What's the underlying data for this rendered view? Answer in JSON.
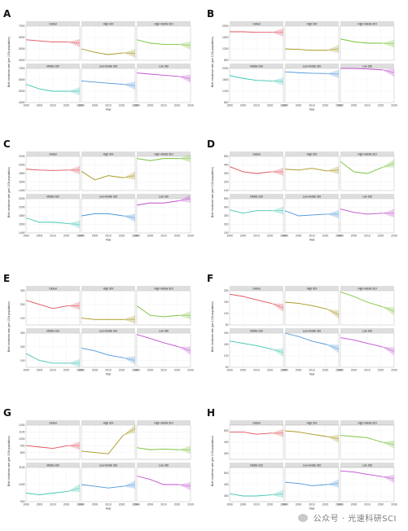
{
  "colors": {
    "Global": "#e0505a",
    "High SDI": "#a6961c",
    "High-middle SDI": "#77c23a",
    "Middle SDI": "#3fc6b4",
    "Low-middle SDI": "#4d98dc",
    "Low SDI": "#c04fd0"
  },
  "watermark": {
    "text": "公众号 · 光速科研SCI",
    "icon": "wechat-icon"
  },
  "chart_data": [
    {
      "label": "A",
      "type": "line",
      "ylabel": "Birth incidence rate (per 100k population)",
      "xlabel": "Year",
      "xlim": [
        1990,
        2030
      ],
      "x_ticks": [
        1990,
        2000,
        2010,
        2020,
        2030
      ],
      "rows": [
        {
          "ylim": [
            4000,
            7000
          ],
          "y_ticks": [
            4000,
            5000,
            6000,
            7000
          ]
        },
        {
          "ylim": [
            4000,
            7000
          ],
          "y_ticks": [
            4000,
            5000,
            6000,
            7000
          ]
        }
      ],
      "panels": [
        {
          "name": "Global",
          "x": [
            1990,
            2000,
            2010,
            2021
          ],
          "y": [
            5800,
            5700,
            5600,
            5600
          ],
          "pred_end": 5500
        },
        {
          "name": "High SDI",
          "x": [
            1990,
            2000,
            2010,
            2021
          ],
          "y": [
            5000,
            4700,
            4500,
            4650
          ],
          "pred_end": 4600
        },
        {
          "name": "High-middle SDI",
          "x": [
            1990,
            2000,
            2010,
            2021
          ],
          "y": [
            5800,
            5500,
            5400,
            5400
          ],
          "pred_end": 5300
        },
        {
          "name": "Middle SDI",
          "x": [
            1990,
            2000,
            2010,
            2021
          ],
          "y": [
            5600,
            5200,
            5000,
            5000
          ],
          "pred_end": 5000
        },
        {
          "name": "Low-middle SDI",
          "x": [
            1990,
            2000,
            2010,
            2021
          ],
          "y": [
            5900,
            5800,
            5700,
            5600
          ],
          "pred_end": 5500
        },
        {
          "name": "Low SDI",
          "x": [
            1990,
            2000,
            2010,
            2021
          ],
          "y": [
            6600,
            6500,
            6400,
            6300
          ],
          "pred_end": 6100
        }
      ]
    },
    {
      "label": "B",
      "type": "line",
      "ylabel": "Birth incidence rate (per 100k population)",
      "xlabel": "Year",
      "xlim": [
        1990,
        2030
      ],
      "x_ticks": [
        1990,
        2000,
        2010,
        2020,
        2030
      ],
      "rows": [
        {
          "ylim": [
            800,
            2000
          ],
          "y_ticks": [
            800,
            1200,
            1600,
            2000
          ]
        },
        {
          "ylim": [
            800,
            2000
          ],
          "y_ticks": [
            800,
            1200,
            1600,
            2000
          ]
        }
      ],
      "panels": [
        {
          "name": "Global",
          "x": [
            1990,
            2000,
            2010,
            2021
          ],
          "y": [
            1800,
            1800,
            1780,
            1780
          ],
          "pred_end": 1780
        },
        {
          "name": "High SDI",
          "x": [
            1990,
            2000,
            2010,
            2021
          ],
          "y": [
            1200,
            1180,
            1150,
            1150
          ],
          "pred_end": 1200
        },
        {
          "name": "High-middle SDI",
          "x": [
            1990,
            2000,
            2010,
            2021
          ],
          "y": [
            1550,
            1450,
            1400,
            1400
          ],
          "pred_end": 1380
        },
        {
          "name": "Middle SDI",
          "x": [
            1990,
            2000,
            2010,
            2021
          ],
          "y": [
            1750,
            1650,
            1580,
            1560
          ],
          "pred_end": 1540
        },
        {
          "name": "Low-middle SDI",
          "x": [
            1990,
            2000,
            2010,
            2021
          ],
          "y": [
            1880,
            1850,
            1830,
            1820
          ],
          "pred_end": 1800
        },
        {
          "name": "Low SDI",
          "x": [
            1990,
            2000,
            2010,
            2021
          ],
          "y": [
            2000,
            2000,
            1980,
            1950
          ],
          "pred_end": 1850
        }
      ]
    },
    {
      "label": "C",
      "type": "line",
      "ylabel": "Birth incidence rate (per 100k population)",
      "xlabel": "Year",
      "xlim": [
        1990,
        2030
      ],
      "x_ticks": [
        1990,
        2000,
        2010,
        2020,
        2030
      ],
      "rows": [
        {
          "ylim": [
            1400,
            2200
          ],
          "y_ticks": [
            1400,
            1600,
            1800,
            2000,
            2200
          ]
        },
        {
          "ylim": [
            1400,
            2200
          ],
          "y_ticks": [
            1400,
            1600,
            1800,
            2000,
            2200
          ]
        }
      ],
      "panels": [
        {
          "name": "Global",
          "x": [
            1990,
            2000,
            2010,
            2021
          ],
          "y": [
            1900,
            1880,
            1870,
            1880
          ],
          "pred_end": 1880
        },
        {
          "name": "High SDI",
          "x": [
            1990,
            2000,
            2010,
            2021
          ],
          "y": [
            1850,
            1650,
            1750,
            1700
          ],
          "pred_end": 1750
        },
        {
          "name": "High-middle SDI",
          "x": [
            1990,
            2000,
            2010,
            2021
          ],
          "y": [
            2150,
            2100,
            2150,
            2150
          ],
          "pred_end": 2150
        },
        {
          "name": "Middle SDI",
          "x": [
            1990,
            2000,
            2010,
            2021
          ],
          "y": [
            1750,
            1650,
            1650,
            1620
          ],
          "pred_end": 1600
        },
        {
          "name": "Low-middle SDI",
          "x": [
            1990,
            2000,
            2010,
            2021
          ],
          "y": [
            1800,
            1850,
            1850,
            1800
          ],
          "pred_end": 1750
        },
        {
          "name": "Low SDI",
          "x": [
            1990,
            2000,
            2010,
            2021
          ],
          "y": [
            2050,
            2100,
            2100,
            2150
          ],
          "pred_end": 2200
        }
      ]
    },
    {
      "label": "D",
      "type": "line",
      "ylabel": "Birth incidence rate (per 100k population)",
      "xlabel": "Year",
      "xlim": [
        1990,
        2030
      ],
      "x_ticks": [
        1990,
        2000,
        2010,
        2020,
        2030
      ],
      "rows": [
        {
          "ylim": [
            100,
            500
          ],
          "y_ticks": [
            100,
            200,
            300,
            400,
            500
          ]
        },
        {
          "ylim": [
            100,
            500
          ],
          "y_ticks": [
            100,
            200,
            300,
            400,
            500
          ]
        }
      ],
      "panels": [
        {
          "name": "Global",
          "x": [
            1990,
            2000,
            2010,
            2021
          ],
          "y": [
            380,
            320,
            300,
            320
          ],
          "pred_end": 320
        },
        {
          "name": "High SDI",
          "x": [
            1990,
            2000,
            2010,
            2021
          ],
          "y": [
            350,
            340,
            360,
            330
          ],
          "pred_end": 340
        },
        {
          "name": "High-middle SDI",
          "x": [
            1990,
            2000,
            2010,
            2021
          ],
          "y": [
            440,
            320,
            300,
            370
          ],
          "pred_end": 420
        },
        {
          "name": "Middle SDI",
          "x": [
            1990,
            2000,
            2010,
            2021
          ],
          "y": [
            370,
            330,
            360,
            360
          ],
          "pred_end": 360
        },
        {
          "name": "Low-middle SDI",
          "x": [
            1990,
            2000,
            2010,
            2021
          ],
          "y": [
            360,
            300,
            310,
            320
          ],
          "pred_end": 320
        },
        {
          "name": "Low SDI",
          "x": [
            1990,
            2000,
            2010,
            2021
          ],
          "y": [
            380,
            340,
            320,
            330
          ],
          "pred_end": 330
        }
      ]
    },
    {
      "label": "E",
      "type": "line",
      "ylabel": "Birth incidence rate (per 100k population)",
      "xlabel": "Year",
      "xlim": [
        1990,
        2030
      ],
      "x_ticks": [
        1990,
        2000,
        2010,
        2020,
        2030
      ],
      "rows": [
        {
          "ylim": [
            50,
            300
          ],
          "y_ticks": [
            100,
            200,
            300
          ]
        },
        {
          "ylim": [
            50,
            300
          ],
          "y_ticks": [
            100,
            200,
            300
          ]
        }
      ],
      "panels": [
        {
          "name": "Global",
          "x": [
            1990,
            2000,
            2010,
            2021
          ],
          "y": [
            230,
            200,
            170,
            190
          ],
          "pred_end": 190
        },
        {
          "name": "High SDI",
          "x": [
            1990,
            2000,
            2010,
            2021
          ],
          "y": [
            100,
            90,
            90,
            90
          ],
          "pred_end": 90
        },
        {
          "name": "High-middle SDI",
          "x": [
            1990,
            2000,
            2010,
            2021
          ],
          "y": [
            190,
            120,
            110,
            120
          ],
          "pred_end": 120
        },
        {
          "name": "Middle SDI",
          "x": [
            1990,
            2000,
            2010,
            2021
          ],
          "y": [
            150,
            100,
            80,
            80
          ],
          "pred_end": 80
        },
        {
          "name": "Low-middle SDI",
          "x": [
            1990,
            2000,
            2010,
            2021
          ],
          "y": [
            190,
            170,
            140,
            120
          ],
          "pred_end": 100
        },
        {
          "name": "Low SDI",
          "x": [
            1990,
            2000,
            2010,
            2021
          ],
          "y": [
            290,
            260,
            230,
            200
          ],
          "pred_end": 170
        }
      ]
    },
    {
      "label": "F",
      "type": "line",
      "ylabel": "Birth incidence rate (per 100k population)",
      "xlabel": "Year",
      "xlim": [
        1990,
        2030
      ],
      "x_ticks": [
        1990,
        2000,
        2010,
        2020,
        2030
      ],
      "rows": [
        {
          "ylim": [
            50,
            200
          ],
          "y_ticks": [
            50,
            100,
            150,
            200
          ]
        },
        {
          "ylim": [
            50,
            200
          ],
          "y_ticks": [
            50,
            100,
            150,
            200
          ]
        }
      ],
      "panels": [
        {
          "name": "Global",
          "x": [
            1990,
            2000,
            2010,
            2021
          ],
          "y": [
            185,
            175,
            160,
            145
          ],
          "pred_end": 125
        },
        {
          "name": "High SDI",
          "x": [
            1990,
            2000,
            2010,
            2021
          ],
          "y": [
            150,
            145,
            135,
            120
          ],
          "pred_end": 95
        },
        {
          "name": "High-middle SDI",
          "x": [
            1990,
            2000,
            2010,
            2021
          ],
          "y": [
            195,
            175,
            150,
            130
          ],
          "pred_end": 110
        },
        {
          "name": "Middle SDI",
          "x": [
            1990,
            2000,
            2010,
            2021
          ],
          "y": [
            165,
            155,
            145,
            130
          ],
          "pred_end": 115
        },
        {
          "name": "Low-middle SDI",
          "x": [
            1990,
            2000,
            2010,
            2021
          ],
          "y": [
            200,
            185,
            165,
            150
          ],
          "pred_end": 130
        },
        {
          "name": "Low SDI",
          "x": [
            1990,
            2000,
            2010,
            2021
          ],
          "y": [
            180,
            170,
            155,
            140
          ],
          "pred_end": 120
        }
      ]
    },
    {
      "label": "G",
      "type": "line",
      "ylabel": "Birth incidence rate (per 100k population)",
      "xlabel": "Year",
      "xlim": [
        1990,
        2030
      ],
      "x_ticks": [
        1990,
        2000,
        2010,
        2020,
        2030
      ],
      "rows": [
        {
          "ylim": [
            700,
            1200
          ],
          "y_ticks": [
            800,
            900,
            1000,
            1100,
            1200
          ]
        },
        {
          "ylim": [
            900,
            1100
          ],
          "y_ticks": [
            900,
            1000,
            1100
          ]
        }
      ],
      "panels": [
        {
          "name": "Global",
          "x": [
            1990,
            2000,
            2010,
            2021
          ],
          "y": [
            900,
            880,
            860,
            900
          ],
          "pred_end": 900
        },
        {
          "name": "High SDI",
          "x": [
            1990,
            2000,
            2010,
            2021
          ],
          "y": [
            820,
            800,
            780,
            1050
          ],
          "pred_end": 1150
        },
        {
          "name": "High-middle SDI",
          "x": [
            1990,
            2000,
            2010,
            2021
          ],
          "y": [
            870,
            840,
            850,
            840
          ],
          "pred_end": 840
        },
        {
          "name": "Middle SDI",
          "x": [
            1990,
            2000,
            2010,
            2021
          ],
          "y": [
            950,
            940,
            950,
            960
          ],
          "pred_end": 980
        },
        {
          "name": "Low-middle SDI",
          "x": [
            1990,
            2000,
            2010,
            2021
          ],
          "y": [
            1000,
            990,
            980,
            990
          ],
          "pred_end": 1000
        },
        {
          "name": "Low SDI",
          "x": [
            1990,
            2000,
            2010,
            2021
          ],
          "y": [
            1050,
            1030,
            1000,
            1000
          ],
          "pred_end": 990
        }
      ]
    },
    {
      "label": "H",
      "type": "line",
      "ylabel": "Birth incidence rate (per 100k population)",
      "xlabel": "Year",
      "xlim": [
        1990,
        2030
      ],
      "x_ticks": [
        1990,
        2000,
        2010,
        2020,
        2030
      ],
      "rows": [
        {
          "ylim": [
            250,
            550
          ],
          "y_ticks": [
            300,
            400,
            500
          ]
        },
        {
          "ylim": [
            250,
            550
          ],
          "y_ticks": [
            300,
            400,
            500
          ]
        }
      ],
      "panels": [
        {
          "name": "Global",
          "x": [
            1990,
            2000,
            2010,
            2021
          ],
          "y": [
            490,
            490,
            470,
            480
          ],
          "pred_end": 480
        },
        {
          "name": "High SDI",
          "x": [
            1990,
            2000,
            2010,
            2021
          ],
          "y": [
            500,
            490,
            470,
            450
          ],
          "pred_end": 430
        },
        {
          "name": "High-middle SDI",
          "x": [
            1990,
            2000,
            2010,
            2021
          ],
          "y": [
            460,
            450,
            440,
            400
          ],
          "pred_end": 380
        },
        {
          "name": "Middle SDI",
          "x": [
            1990,
            2000,
            2010,
            2021
          ],
          "y": [
            320,
            300,
            300,
            310
          ],
          "pred_end": 320
        },
        {
          "name": "Low-middle SDI",
          "x": [
            1990,
            2000,
            2010,
            2021
          ],
          "y": [
            420,
            410,
            390,
            400
          ],
          "pred_end": 410
        },
        {
          "name": "Low SDI",
          "x": [
            1990,
            2000,
            2010,
            2021
          ],
          "y": [
            520,
            510,
            490,
            470
          ],
          "pred_end": 450
        }
      ]
    }
  ]
}
